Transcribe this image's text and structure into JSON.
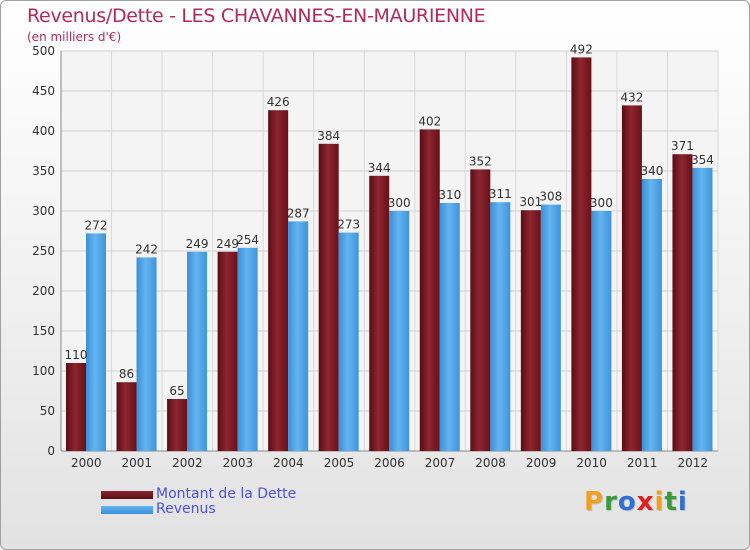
{
  "title": "Revenus/Dette - LES CHAVANNES-EN-MAURIENNE",
  "subtitle": "(en milliers d'€)",
  "colors": {
    "dette": "#7a1a22",
    "revenus": "#4aa3e6",
    "title": "#b5285a",
    "legend_text": "#4a52d8"
  },
  "legend": {
    "items": [
      {
        "label": "Montant de la Dette",
        "color": "#7a1a22"
      },
      {
        "label": "Revenus",
        "color": "#4aa3e6"
      }
    ]
  },
  "logo": {
    "text": "Proxiti",
    "letters": [
      {
        "char": "P",
        "color": "#f0a020"
      },
      {
        "char": "r",
        "color": "#3a9a3a"
      },
      {
        "char": "o",
        "color": "#3070d0"
      },
      {
        "char": "x",
        "color": "#e02020"
      },
      {
        "char": "i",
        "color": "#f0a020"
      },
      {
        "char": "t",
        "color": "#3a9a3a"
      },
      {
        "char": "i",
        "color": "#3070d0"
      }
    ]
  },
  "chart_data": {
    "type": "bar",
    "title": "Revenus/Dette - LES CHAVANNES-EN-MAURIENNE",
    "subtitle": "(en milliers d'€)",
    "categories": [
      "2000",
      "2001",
      "2002",
      "2003",
      "2004",
      "2005",
      "2006",
      "2007",
      "2008",
      "2009",
      "2010",
      "2011",
      "2012"
    ],
    "series": [
      {
        "name": "Montant de la Dette",
        "values": [
          110,
          86,
          65,
          249,
          426,
          384,
          344,
          402,
          352,
          301,
          492,
          432,
          371
        ]
      },
      {
        "name": "Revenus",
        "values": [
          272,
          242,
          249,
          254,
          287,
          273,
          300,
          310,
          311,
          308,
          300,
          340,
          354
        ]
      }
    ],
    "ylim": [
      0,
      500
    ],
    "yticks": [
      0,
      50,
      100,
      150,
      200,
      250,
      300,
      350,
      400,
      450,
      500
    ],
    "grid": true,
    "legend_position": "bottom-left"
  }
}
